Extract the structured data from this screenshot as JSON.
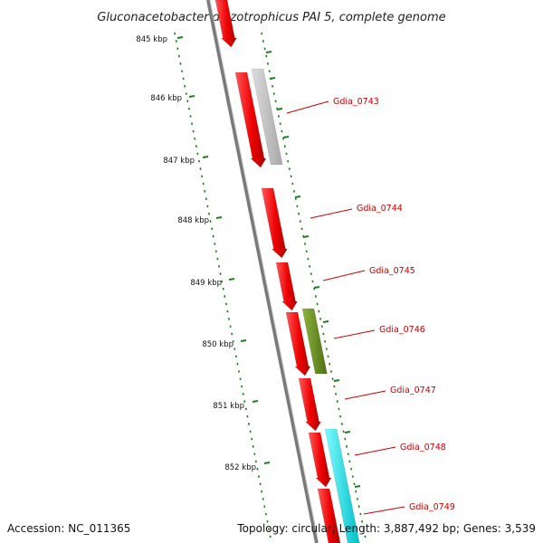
{
  "title": "Gluconacetobacter diazotrophicus PAI 5, complete genome",
  "ticks": [
    "845 kbp",
    "846 kbp",
    "847 kbp",
    "848 kbp",
    "849 kbp",
    "850 kbp",
    "851 kbp",
    "852 kbp"
  ],
  "gene_labels": [
    "Gdia_0743",
    "Gdia_0744",
    "Gdia_0745",
    "Gdia_0746",
    "Gdia_0747",
    "Gdia_0748",
    "Gdia_0749"
  ],
  "footer": {
    "accession": "Accession: NC_011365",
    "topology": "Topology: circular; Length: 3,887,492 bp; Genes: 3,539"
  },
  "colors": {
    "cds": "#ee0000",
    "grey_feature": "#bdbdbd",
    "green_feature": "#6b8e23",
    "cyan_feature": "#00e5ee",
    "ticks": "#1e7d1e",
    "backbone": "#7a7a7a",
    "label": "#cc0000"
  }
}
